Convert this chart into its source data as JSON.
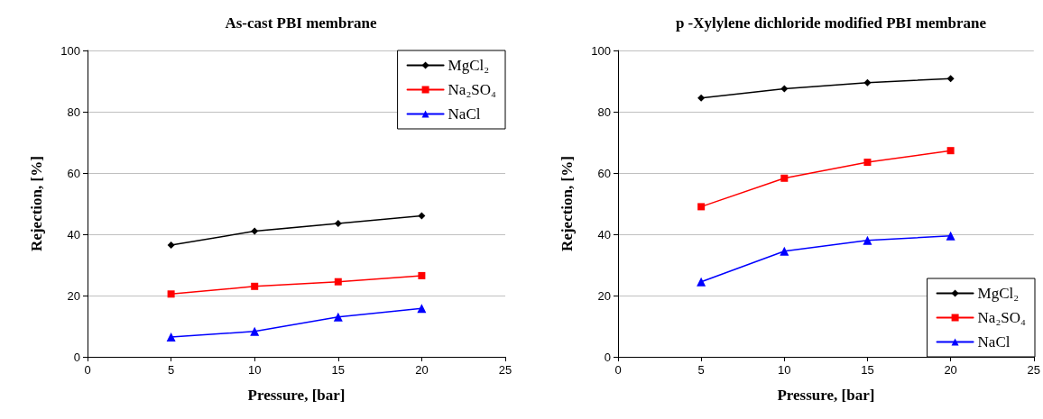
{
  "chart_data": [
    {
      "type": "line",
      "title": "As-cast PBI membrane",
      "xlabel": "Pressure, [bar]",
      "ylabel": "Rejection, [%]",
      "x": [
        5,
        10,
        15,
        20
      ],
      "xlim": [
        0,
        25
      ],
      "xticks": [
        0,
        5,
        10,
        15,
        20,
        25
      ],
      "ylim": [
        0,
        100
      ],
      "yticks": [
        0,
        20,
        40,
        60,
        80,
        100
      ],
      "grid": "y",
      "legend": "top right",
      "line_style": "solid",
      "series": [
        {
          "name": "MgCl₂",
          "color": "#000000",
          "marker": "diamond",
          "values": [
            36.5,
            41,
            43.5,
            46
          ]
        },
        {
          "name": "Na₂SO₄",
          "color": "#ff0000",
          "marker": "square",
          "values": [
            20.5,
            23,
            24.5,
            26.5
          ]
        },
        {
          "name": "NaCl",
          "color": "#0000ff",
          "marker": "triangle",
          "values": [
            6.5,
            8.3,
            13,
            15.8
          ]
        }
      ]
    },
    {
      "type": "line",
      "title": "p -Xylylene dichloride modified PBI membrane",
      "xlabel": "Pressure, [bar]",
      "ylabel": "Rejection, [%]",
      "x": [
        5,
        10,
        15,
        20
      ],
      "xlim": [
        0,
        25
      ],
      "xticks": [
        0,
        5,
        10,
        15,
        20,
        25
      ],
      "ylim": [
        0,
        100
      ],
      "yticks": [
        0,
        20,
        40,
        60,
        80,
        100
      ],
      "grid": "y",
      "legend": "bottom right",
      "line_style": "solid",
      "series": [
        {
          "name": "MgCl₂",
          "color": "#000000",
          "marker": "diamond",
          "values": [
            84.5,
            87.5,
            89.5,
            90.8
          ]
        },
        {
          "name": "Na₂SO₄",
          "color": "#ff0000",
          "marker": "square",
          "values": [
            49,
            58.3,
            63.5,
            67.3
          ]
        },
        {
          "name": "NaCl",
          "color": "#0000ff",
          "marker": "triangle",
          "values": [
            24.5,
            34.5,
            38,
            39.5
          ]
        }
      ]
    }
  ]
}
